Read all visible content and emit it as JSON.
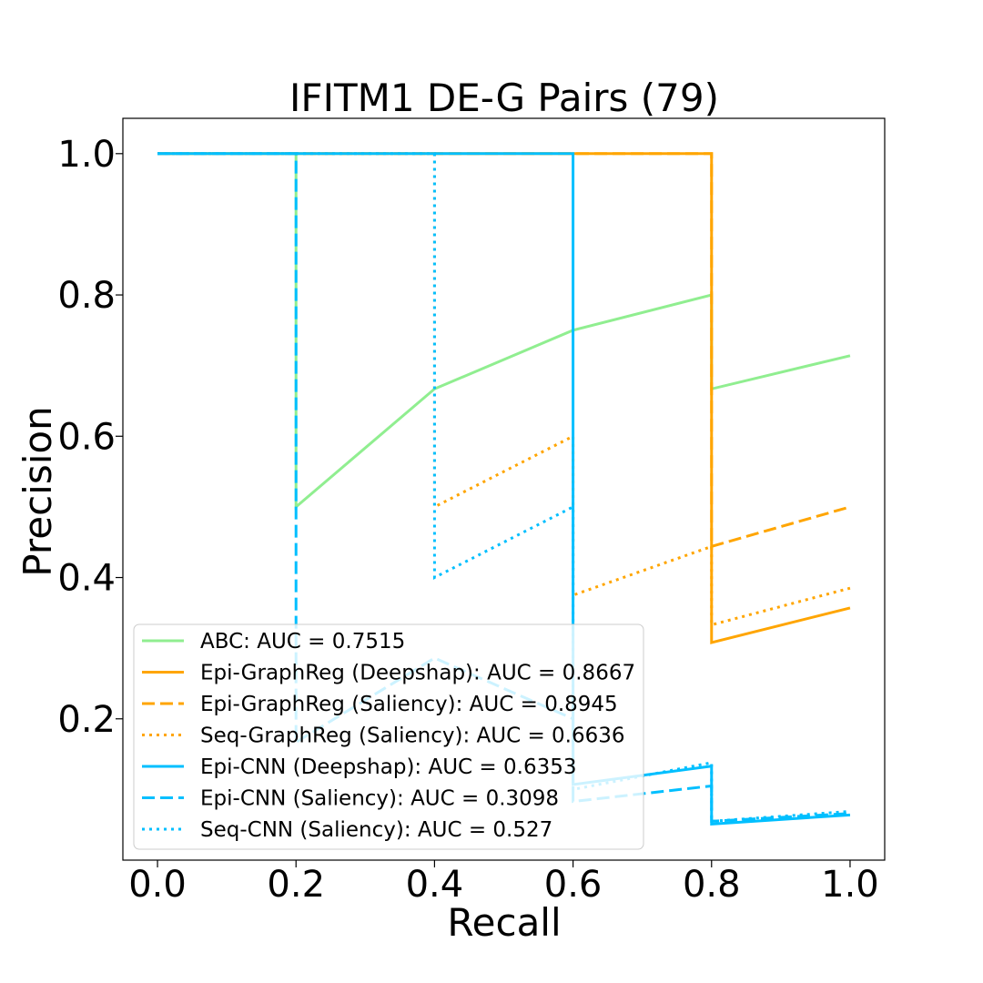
{
  "chart_data": {
    "type": "line",
    "title": "IFITM1 DE-G Pairs (79)",
    "xlabel": "Recall",
    "ylabel": "Precision",
    "xlim": [
      -0.05,
      1.05
    ],
    "ylim": [
      0.0,
      1.05
    ],
    "xticks": [
      0.0,
      0.2,
      0.4,
      0.6,
      0.8,
      1.0
    ],
    "yticks": [
      0.2,
      0.4,
      0.6,
      0.8,
      1.0
    ],
    "xtick_labels": [
      "0.0",
      "0.2",
      "0.4",
      "0.6",
      "0.8",
      "1.0"
    ],
    "ytick_labels": [
      "0.2",
      "0.4",
      "0.6",
      "0.8",
      "1.0"
    ],
    "grid": false,
    "legend_position": "lower-left",
    "series": [
      {
        "name": "ABC: AUC = 0.7515",
        "color": "#90EE90",
        "style": "solid",
        "points": [
          [
            0.0,
            1.0
          ],
          [
            0.2,
            1.0
          ],
          [
            0.2,
            0.5
          ],
          [
            0.4,
            0.667
          ],
          [
            0.6,
            0.75
          ],
          [
            0.8,
            0.8
          ],
          [
            0.8,
            0.667
          ],
          [
            1.0,
            0.714
          ]
        ]
      },
      {
        "name": "Epi-GraphReg (Deepshap): AUC = 0.8667",
        "color": "#FFA500",
        "style": "solid",
        "points": [
          [
            0.0,
            1.0
          ],
          [
            0.8,
            1.0
          ],
          [
            0.8,
            0.308
          ],
          [
            1.0,
            0.357
          ]
        ]
      },
      {
        "name": "Epi-GraphReg (Saliency): AUC = 0.8945",
        "color": "#FFA500",
        "style": "dashed",
        "points": [
          [
            0.0,
            1.0
          ],
          [
            0.8,
            1.0
          ],
          [
            0.8,
            0.444
          ],
          [
            1.0,
            0.5
          ]
        ]
      },
      {
        "name": "Seq-GraphReg (Saliency): AUC = 0.6636",
        "color": "#FFA500",
        "style": "dotted",
        "points": [
          [
            0.0,
            1.0
          ],
          [
            0.4,
            1.0
          ],
          [
            0.4,
            0.5
          ],
          [
            0.6,
            0.6
          ],
          [
            0.6,
            0.375
          ],
          [
            0.8,
            0.444
          ],
          [
            0.8,
            0.333
          ],
          [
            1.0,
            0.385
          ]
        ]
      },
      {
        "name": "Epi-CNN (Deepshap): AUC = 0.6353",
        "color": "#00BFFF",
        "style": "solid",
        "points": [
          [
            0.0,
            1.0
          ],
          [
            0.6,
            1.0
          ],
          [
            0.6,
            0.107
          ],
          [
            0.8,
            0.133
          ],
          [
            0.8,
            0.051
          ],
          [
            1.0,
            0.064
          ]
        ]
      },
      {
        "name": "Epi-CNN (Saliency): AUC = 0.3098",
        "color": "#00BFFF",
        "style": "dashed",
        "points": [
          [
            0.0,
            1.0
          ],
          [
            0.2,
            1.0
          ],
          [
            0.2,
            0.167
          ],
          [
            0.4,
            0.286
          ],
          [
            0.6,
            0.2
          ],
          [
            0.6,
            0.083
          ],
          [
            0.8,
            0.105
          ],
          [
            0.8,
            0.055
          ],
          [
            1.0,
            0.066
          ]
        ]
      },
      {
        "name": "Seq-CNN (Saliency): AUC = 0.527",
        "color": "#00BFFF",
        "style": "dotted",
        "points": [
          [
            0.0,
            1.0
          ],
          [
            0.4,
            1.0
          ],
          [
            0.4,
            0.4
          ],
          [
            0.6,
            0.5
          ],
          [
            0.6,
            0.1
          ],
          [
            0.8,
            0.138
          ],
          [
            0.8,
            0.055
          ],
          [
            1.0,
            0.069
          ]
        ]
      }
    ]
  }
}
